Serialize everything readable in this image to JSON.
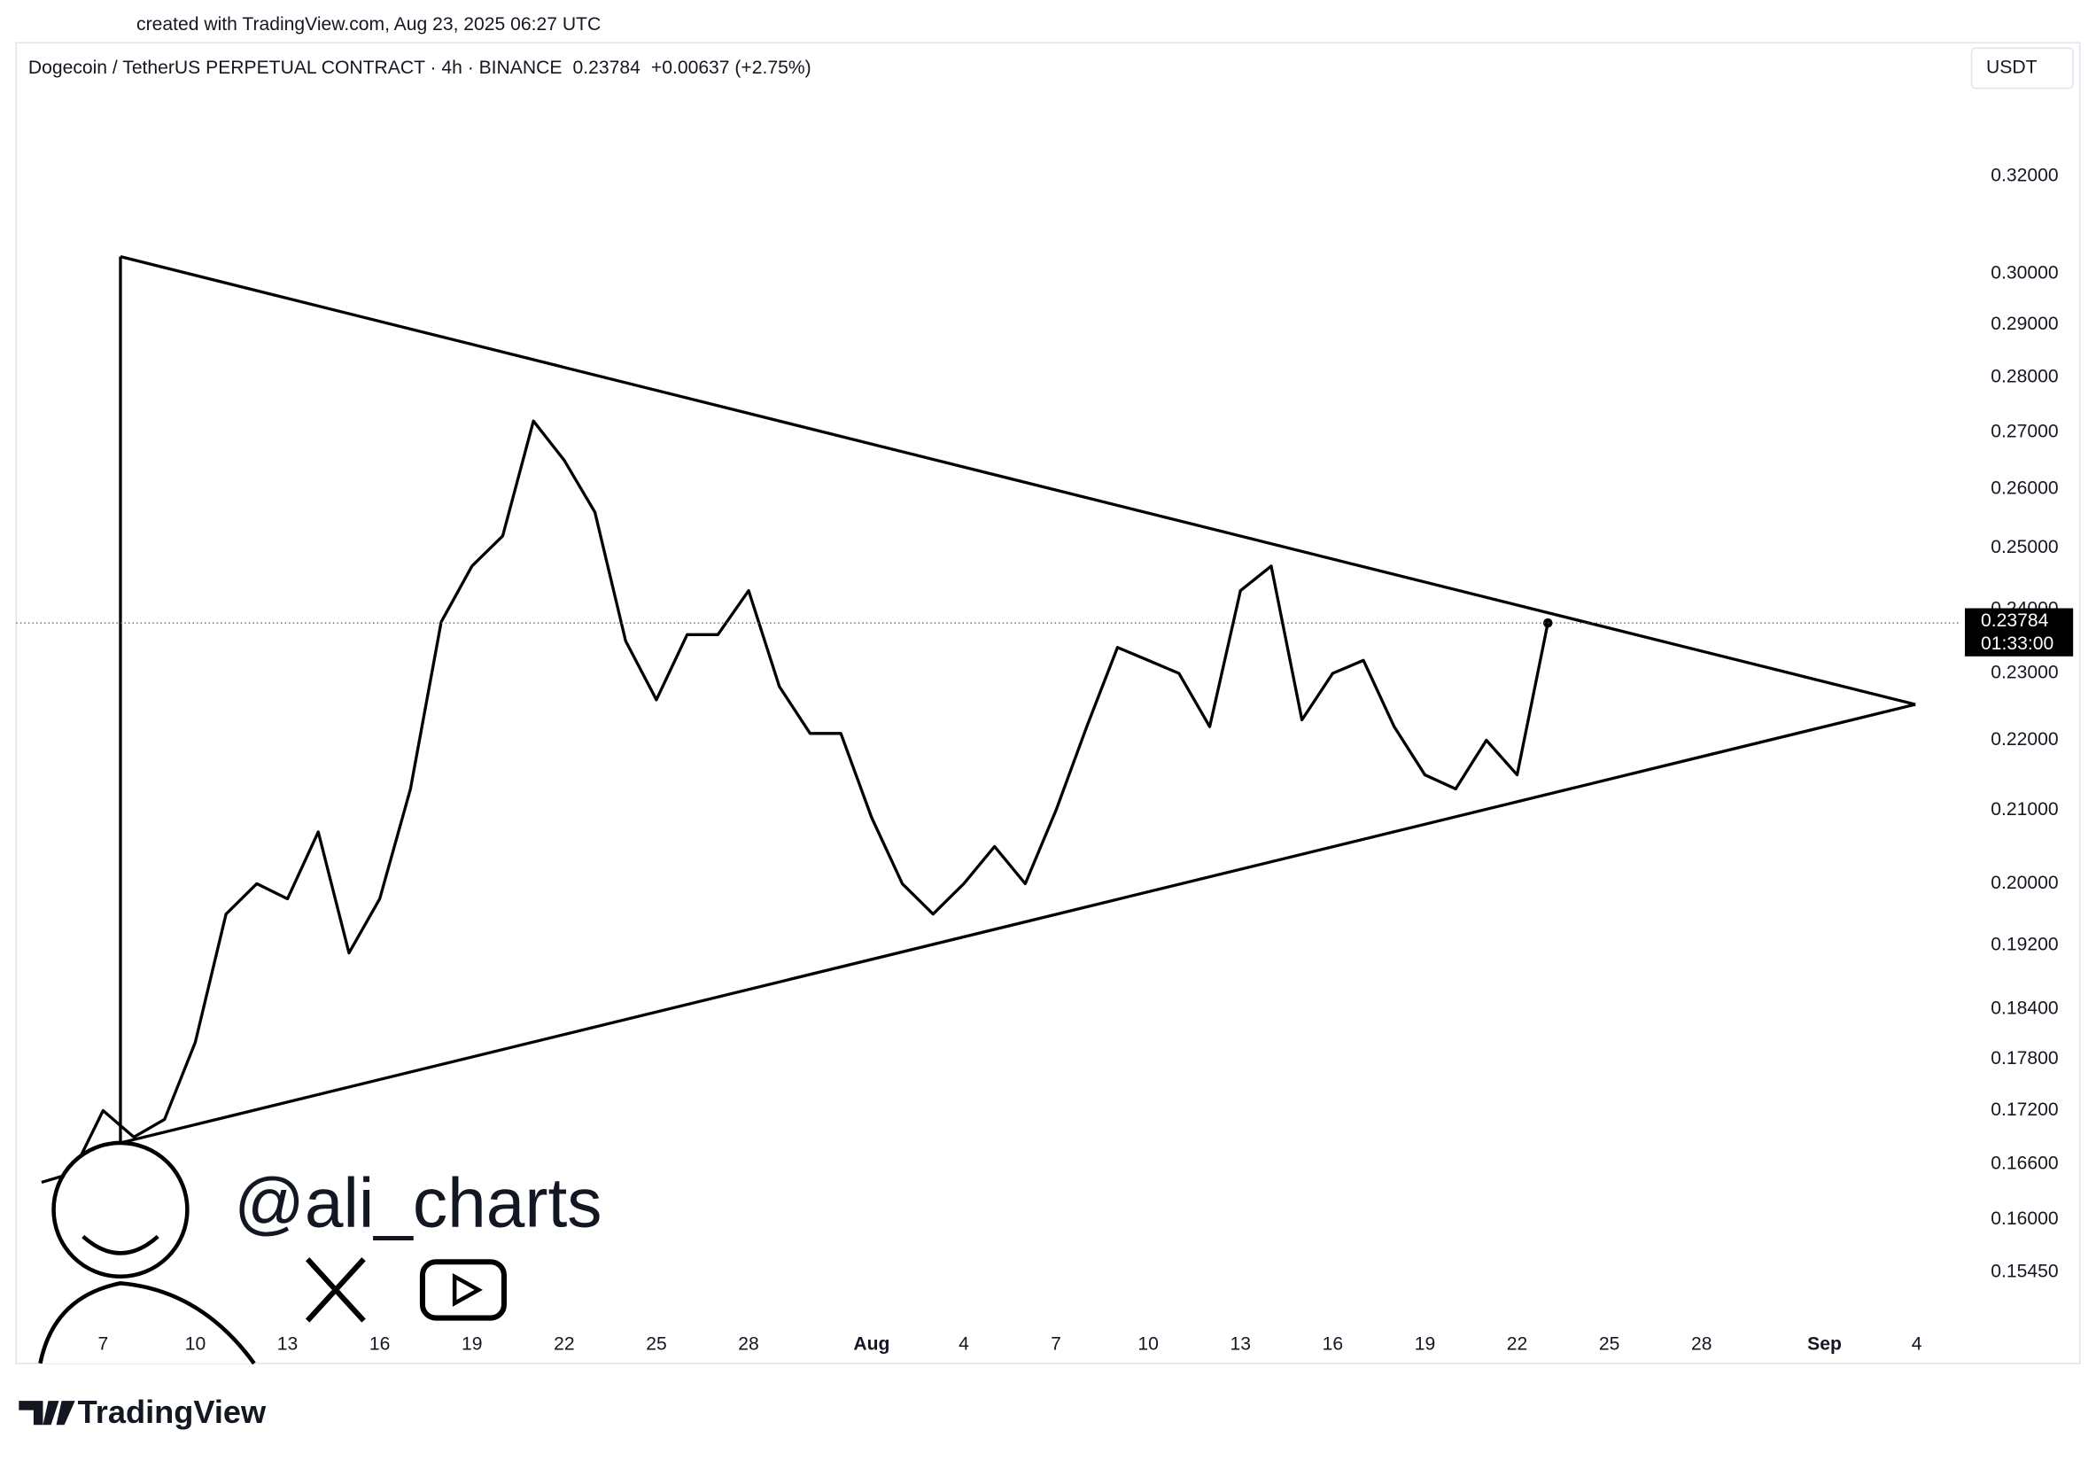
{
  "credit": "created with TradingView.com, Aug 23, 2025 06:27 UTC",
  "currency": "USDT",
  "watermark": "@ali_charts",
  "brand": "TradingView",
  "chart_data": {
    "type": "line",
    "title": "Dogecoin / TetherUS PERPETUAL CONTRACT · 4h · BINANCE",
    "last_price": 0.23784,
    "change": "+0.00637 (+2.75%)",
    "countdown": "01:33:00",
    "log_scale": true,
    "color": "#000000",
    "ylim": [
      0.1454,
      0.3488
    ],
    "yticks": [
      {
        "value": 0.32,
        "label": "0.32000"
      },
      {
        "value": 0.3,
        "label": "0.30000"
      },
      {
        "value": 0.29,
        "label": "0.29000"
      },
      {
        "value": 0.28,
        "label": "0.28000"
      },
      {
        "value": 0.27,
        "label": "0.27000"
      },
      {
        "value": 0.26,
        "label": "0.26000"
      },
      {
        "value": 0.25,
        "label": "0.25000"
      },
      {
        "value": 0.24,
        "label": "0.24000"
      },
      {
        "value": 0.23,
        "label": "0.23000"
      },
      {
        "value": 0.22,
        "label": "0.22000"
      },
      {
        "value": 0.21,
        "label": "0.21000"
      },
      {
        "value": 0.2,
        "label": "0.20000"
      },
      {
        "value": 0.192,
        "label": "0.19200"
      },
      {
        "value": 0.184,
        "label": "0.18400"
      },
      {
        "value": 0.178,
        "label": "0.17800"
      },
      {
        "value": 0.172,
        "label": "0.17200"
      },
      {
        "value": 0.166,
        "label": "0.16600"
      },
      {
        "value": 0.16,
        "label": "0.16000"
      },
      {
        "value": 0.1545,
        "label": "0.15450"
      }
    ],
    "categories": [
      null,
      null,
      "7",
      null,
      null,
      "10",
      null,
      null,
      "13",
      null,
      null,
      "16",
      null,
      null,
      "19",
      null,
      null,
      "22",
      null,
      null,
      "25",
      null,
      null,
      "28",
      null,
      null,
      null,
      "Aug",
      null,
      null,
      "4",
      null,
      null,
      "7",
      null,
      null,
      "10",
      null,
      null,
      "13",
      null,
      null,
      "16",
      null,
      null,
      "19",
      null,
      null,
      "22",
      null,
      null,
      "25",
      null,
      null,
      "28",
      null,
      null,
      null,
      "Sep",
      null,
      null,
      "4",
      null,
      null
    ],
    "values": [
      0.164,
      0.165,
      0.172,
      0.169,
      0.171,
      0.18,
      0.196,
      0.2,
      0.198,
      0.207,
      0.191,
      0.198,
      0.213,
      0.238,
      0.247,
      0.252,
      0.272,
      0.265,
      0.256,
      0.235,
      0.226,
      0.236,
      0.236,
      0.243,
      0.228,
      0.221,
      0.221,
      0.209,
      0.2,
      0.196,
      0.2,
      0.205,
      0.2,
      0.21,
      0.222,
      0.234,
      0.232,
      0.23,
      0.222,
      0.243,
      0.247,
      0.223,
      0.23,
      0.232,
      0.222,
      0.215,
      0.213,
      0.22,
      0.215,
      0.23784,
      null,
      null,
      null,
      null,
      null,
      null,
      null,
      null,
      null,
      null,
      null,
      null,
      null,
      null
    ]
  }
}
